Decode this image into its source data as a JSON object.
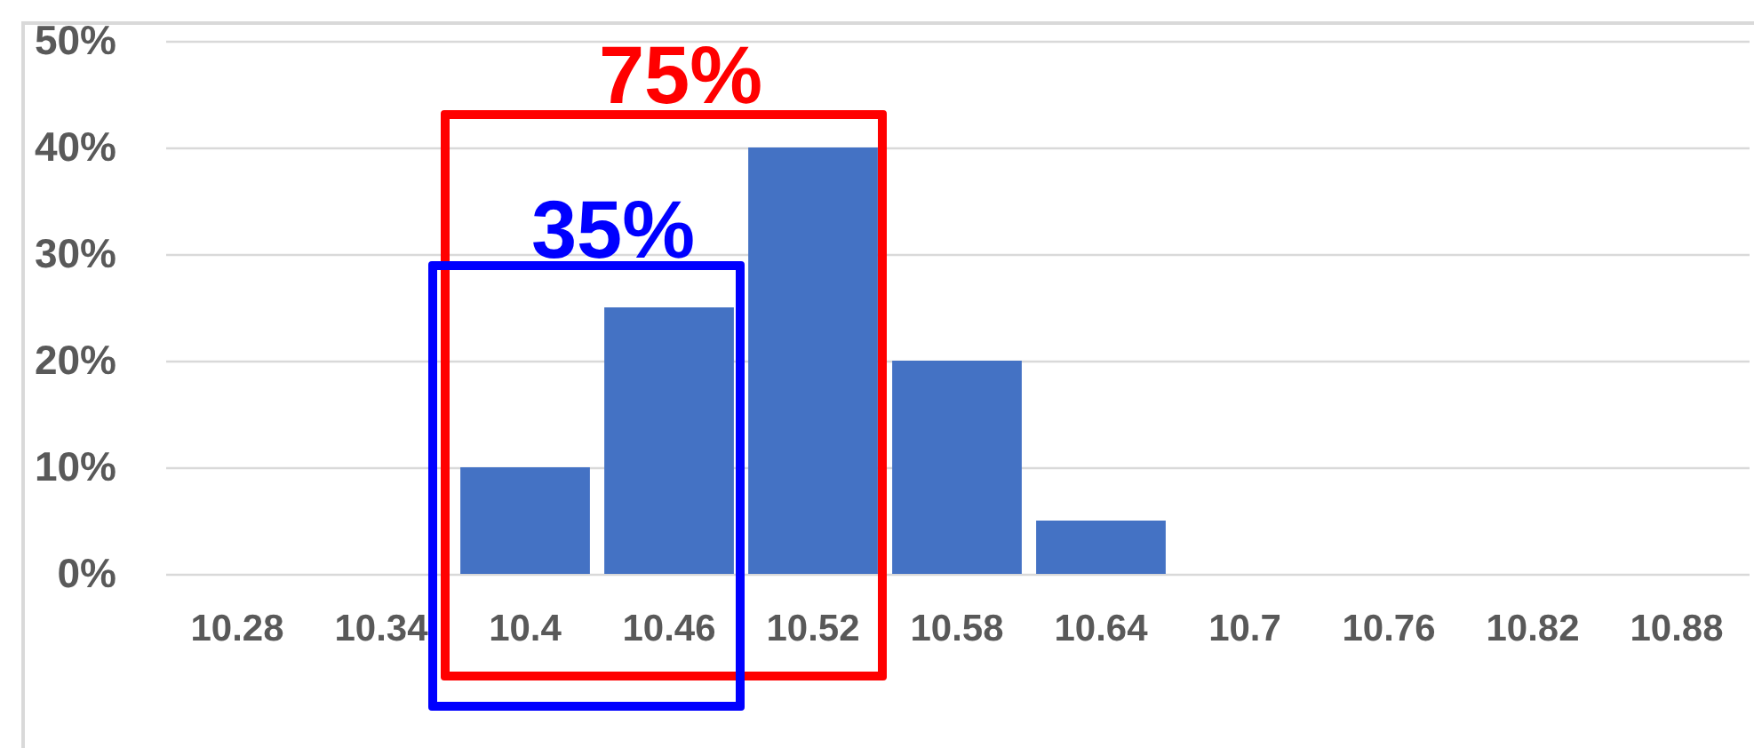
{
  "chart_data": {
    "type": "bar",
    "categories": [
      "10.28",
      "10.34",
      "10.4",
      "10.46",
      "10.52",
      "10.58",
      "10.64",
      "10.7",
      "10.76",
      "10.82",
      "10.88"
    ],
    "values": [
      0,
      0,
      10,
      25,
      40,
      20,
      5,
      0,
      0,
      0,
      0
    ],
    "color": "#4472c4",
    "ylim": [
      0,
      50
    ],
    "yticks": [
      {
        "value": 0,
        "label": "0%"
      },
      {
        "value": 10,
        "label": "10%"
      },
      {
        "value": 20,
        "label": "20%"
      },
      {
        "value": 30,
        "label": "30%"
      },
      {
        "value": 40,
        "label": "40%"
      },
      {
        "value": 50,
        "label": "50%"
      }
    ],
    "grid": "y",
    "annotations": [
      "75%",
      "35%"
    ]
  }
}
